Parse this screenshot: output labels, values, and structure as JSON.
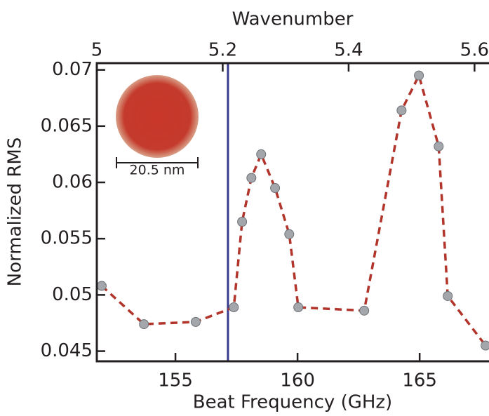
{
  "chart_data": {
    "type": "line",
    "x_label": "Beat Frequency (GHz)",
    "y_label": "Normalized RMS",
    "x2_label": "Wavenumber",
    "x": [
      151.98,
      153.71,
      155.83,
      157.39,
      157.73,
      158.11,
      158.51,
      159.08,
      159.66,
      160.03,
      162.73,
      164.26,
      164.97,
      165.78,
      166.15,
      167.7
    ],
    "series": [
      {
        "color": "#b2352c",
        "marker_color": "#a3a7ab",
        "values": [
          0.0508,
          0.0474,
          0.0476,
          0.0489,
          0.0565,
          0.0604,
          0.0625,
          0.0595,
          0.0554,
          0.0489,
          0.0486,
          0.0664,
          0.0695,
          0.0632,
          0.0499,
          0.0455
        ]
      }
    ],
    "xlim": [
      151.78,
      167.84
    ],
    "xticks": [
      155,
      160,
      165
    ],
    "ylim": [
      0.0441,
      0.0706
    ],
    "yticks": [
      0.045,
      0.05,
      0.055,
      0.06,
      0.065,
      0.07
    ],
    "x2lim": [
      5,
      5.623
    ],
    "x2ticks": [
      5,
      5.2,
      5.4,
      5.6
    ],
    "vline": {
      "x": 157.15,
      "color": "#3a3a8c"
    },
    "inset_label": "20.5 nm"
  }
}
